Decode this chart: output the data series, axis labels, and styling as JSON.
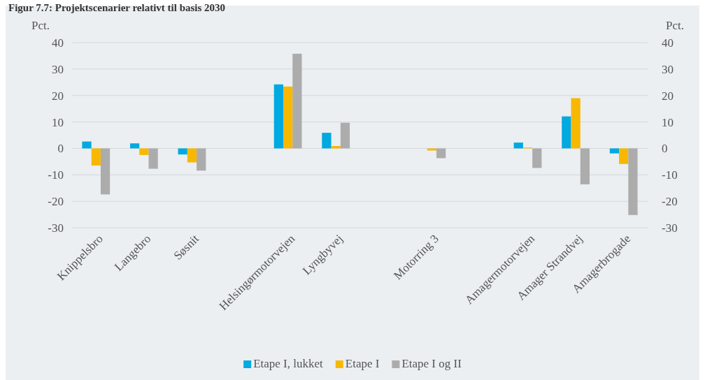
{
  "chart_data": {
    "type": "bar",
    "title": "Figur 7.7: Projektscenarier relativt til basis 2030",
    "categories": [
      "Knippelsbro",
      "Langebro",
      "Søsnit",
      null,
      "Helsingørmotorvejen",
      "Lyngbyvej",
      null,
      "Motorring 3",
      null,
      "Amagermotorvejen",
      "Amager Strandvej",
      "Amagerbrogade"
    ],
    "series": [
      {
        "name": "Etape I, lukket",
        "color": "#00a9e0",
        "values": [
          2.6,
          1.9,
          -2.3,
          null,
          24.2,
          5.9,
          null,
          null,
          null,
          2.2,
          12.1,
          -1.9
        ]
      },
      {
        "name": "Etape I",
        "color": "#f8b800",
        "values": [
          -6.5,
          -2.5,
          -5.3,
          null,
          23.4,
          0.9,
          null,
          -0.8,
          null,
          0.3,
          19.0,
          -5.9
        ]
      },
      {
        "name": "Etape I og II",
        "color": "#acacac",
        "values": [
          -17.4,
          -7.7,
          -8.4,
          null,
          35.8,
          9.7,
          null,
          -3.7,
          null,
          -7.4,
          -13.6,
          -25.2
        ]
      }
    ],
    "ylabel": "Pct.",
    "y2label": "Pct.",
    "ylim": [
      -30,
      40
    ],
    "yticks": [
      -30,
      -20,
      -10,
      0,
      10,
      20,
      30,
      40
    ],
    "y2lim": [
      -30,
      40
    ],
    "y2ticks": [
      -30,
      -20,
      -10,
      0,
      10,
      20,
      30,
      40
    ],
    "grid": "y",
    "legend": "bottom"
  }
}
